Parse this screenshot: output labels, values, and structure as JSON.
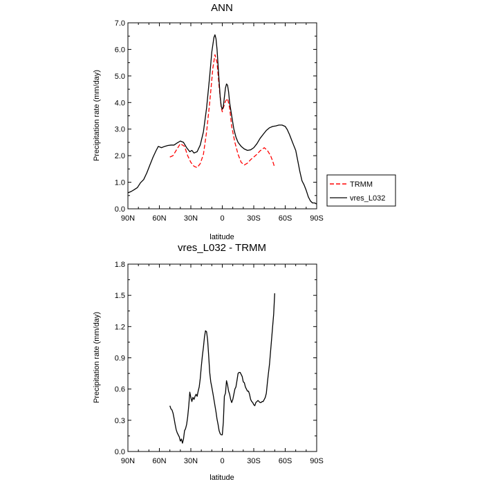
{
  "chart_data": [
    {
      "type": "line",
      "title": "ANN",
      "xlabel": "latitude",
      "ylabel": "Precipitation rate (mm/day)",
      "xlim": [
        -90,
        90
      ],
      "ylim": [
        0,
        7
      ],
      "x_ticks": [
        {
          "value": -90,
          "label": "90N"
        },
        {
          "value": -60,
          "label": "60N"
        },
        {
          "value": -30,
          "label": "30N"
        },
        {
          "value": 0,
          "label": "0"
        },
        {
          "value": 30,
          "label": "30S"
        },
        {
          "value": 60,
          "label": "60S"
        },
        {
          "value": 90,
          "label": "90S"
        }
      ],
      "y_ticks": [
        {
          "value": 0,
          "label": "0.0"
        },
        {
          "value": 1,
          "label": "1.0"
        },
        {
          "value": 2,
          "label": "2.0"
        },
        {
          "value": 3,
          "label": "3.0"
        },
        {
          "value": 4,
          "label": "4.0"
        },
        {
          "value": 5,
          "label": "5.0"
        },
        {
          "value": 6,
          "label": "6.0"
        },
        {
          "value": 7,
          "label": "7.0"
        }
      ],
      "legend": {
        "position": "outside-right",
        "entries": [
          {
            "name": "TRMM",
            "color": "#ff0000",
            "dash": "dashed"
          },
          {
            "name": "vres_L032",
            "color": "#000000",
            "dash": "solid"
          }
        ]
      },
      "series": [
        {
          "name": "TRMM",
          "color": "#ff0000",
          "dash": "dashed",
          "x": [
            -50,
            -47,
            -44,
            -40,
            -36,
            -33,
            -30,
            -27,
            -24,
            -21,
            -18,
            -15,
            -12,
            -9,
            -7,
            -5,
            -3,
            -1,
            0,
            1,
            3,
            5,
            7,
            9,
            12,
            15,
            18,
            21,
            24,
            27,
            30,
            33,
            36,
            40,
            43,
            46,
            48,
            50
          ],
          "y": [
            1.95,
            2.0,
            2.2,
            2.45,
            2.35,
            2.0,
            1.75,
            1.6,
            1.55,
            1.7,
            2.05,
            2.9,
            4.0,
            5.3,
            5.8,
            5.5,
            4.6,
            3.8,
            3.65,
            3.8,
            4.05,
            4.15,
            3.8,
            3.1,
            2.5,
            2.05,
            1.75,
            1.65,
            1.72,
            1.85,
            1.95,
            2.05,
            2.18,
            2.3,
            2.2,
            2.0,
            1.8,
            1.55
          ]
        },
        {
          "name": "vres_L032",
          "color": "#000000",
          "dash": "solid",
          "x": [
            -90,
            -87,
            -84,
            -81,
            -78,
            -75,
            -72,
            -69,
            -66,
            -63,
            -61,
            -58,
            -55,
            -52,
            -49,
            -46,
            -43,
            -40,
            -37,
            -34,
            -31,
            -29,
            -27,
            -24,
            -21,
            -18,
            -15,
            -12,
            -10,
            -8,
            -7,
            -6,
            -5,
            -4,
            -3,
            -2,
            -1,
            0,
            1,
            2,
            3,
            4,
            5,
            6,
            7,
            9,
            11,
            13,
            15,
            18,
            21,
            24,
            27,
            30,
            33,
            36,
            39,
            42,
            45,
            48,
            51,
            54,
            57,
            60,
            62,
            64,
            66,
            68,
            70,
            72,
            74,
            76,
            78,
            80,
            82,
            84,
            86,
            88,
            90
          ],
          "y": [
            0.6,
            0.65,
            0.72,
            0.8,
            0.98,
            1.1,
            1.35,
            1.65,
            1.95,
            2.2,
            2.35,
            2.3,
            2.35,
            2.38,
            2.4,
            2.4,
            2.48,
            2.55,
            2.5,
            2.3,
            2.15,
            2.2,
            2.1,
            2.15,
            2.4,
            2.9,
            3.8,
            5.0,
            5.9,
            6.45,
            6.55,
            6.4,
            6.0,
            5.4,
            4.8,
            4.2,
            3.85,
            3.75,
            3.85,
            4.2,
            4.55,
            4.7,
            4.65,
            4.4,
            4.0,
            3.5,
            3.0,
            2.7,
            2.5,
            2.35,
            2.25,
            2.2,
            2.22,
            2.3,
            2.45,
            2.65,
            2.8,
            2.95,
            3.05,
            3.1,
            3.12,
            3.15,
            3.15,
            3.1,
            2.98,
            2.8,
            2.6,
            2.4,
            2.2,
            1.8,
            1.4,
            1.05,
            0.9,
            0.7,
            0.45,
            0.3,
            0.22,
            0.22,
            0.18
          ]
        }
      ]
    },
    {
      "type": "line",
      "title": "vres_L032 - TRMM",
      "xlabel": "latitude",
      "ylabel": "Precipitation rate (mm/day)",
      "xlim": [
        -90,
        90
      ],
      "ylim": [
        0,
        1.8
      ],
      "x_ticks": [
        {
          "value": -90,
          "label": "90N"
        },
        {
          "value": -60,
          "label": "60N"
        },
        {
          "value": -30,
          "label": "30N"
        },
        {
          "value": 0,
          "label": "0"
        },
        {
          "value": 30,
          "label": "30S"
        },
        {
          "value": 60,
          "label": "60S"
        },
        {
          "value": 90,
          "label": "90S"
        }
      ],
      "y_ticks": [
        {
          "value": 0,
          "label": "0.0"
        },
        {
          "value": 0.3,
          "label": "0.3"
        },
        {
          "value": 0.6,
          "label": "0.6"
        },
        {
          "value": 0.9,
          "label": "0.9"
        },
        {
          "value": 1.2,
          "label": "1.2"
        },
        {
          "value": 1.5,
          "label": "1.5"
        },
        {
          "value": 1.8,
          "label": "1.8"
        }
      ],
      "series": [
        {
          "name": "vres_L032 - TRMM",
          "color": "#000000",
          "dash": "solid",
          "x": [
            -50,
            -49,
            -48,
            -47,
            -46,
            -45,
            -44,
            -43,
            -42,
            -41,
            -40,
            -39,
            -38,
            -37,
            -36,
            -35,
            -34,
            -33,
            -32,
            -31,
            -30,
            -29,
            -28,
            -27,
            -26,
            -25,
            -24,
            -23,
            -22,
            -21,
            -20,
            -19,
            -18,
            -17,
            -16,
            -15,
            -14,
            -13,
            -12,
            -11,
            -10,
            -9,
            -8,
            -7,
            -6,
            -5,
            -4,
            -3,
            -2,
            -1,
            0,
            1,
            2,
            3,
            4,
            5,
            6,
            7,
            8,
            9,
            10,
            11,
            12,
            13,
            14,
            15,
            16,
            17,
            18,
            19,
            20,
            21,
            22,
            23,
            24,
            25,
            26,
            27,
            28,
            29,
            30,
            31,
            32,
            33,
            34,
            35,
            36,
            37,
            38,
            39,
            40,
            41,
            42,
            43,
            44,
            45,
            46,
            47,
            48,
            49,
            50
          ],
          "y": [
            0.44,
            0.41,
            0.4,
            0.37,
            0.32,
            0.26,
            0.21,
            0.18,
            0.16,
            0.14,
            0.1,
            0.12,
            0.08,
            0.12,
            0.2,
            0.22,
            0.26,
            0.33,
            0.44,
            0.57,
            0.52,
            0.48,
            0.52,
            0.5,
            0.53,
            0.55,
            0.53,
            0.58,
            0.62,
            0.7,
            0.82,
            0.92,
            1.0,
            1.1,
            1.16,
            1.15,
            1.07,
            0.92,
            0.76,
            0.67,
            0.62,
            0.56,
            0.5,
            0.44,
            0.38,
            0.31,
            0.26,
            0.2,
            0.17,
            0.16,
            0.16,
            0.28,
            0.53,
            0.56,
            0.68,
            0.64,
            0.58,
            0.55,
            0.5,
            0.47,
            0.5,
            0.55,
            0.6,
            0.62,
            0.68,
            0.75,
            0.76,
            0.76,
            0.74,
            0.72,
            0.67,
            0.66,
            0.62,
            0.6,
            0.58,
            0.58,
            0.55,
            0.5,
            0.48,
            0.47,
            0.45,
            0.44,
            0.47,
            0.48,
            0.49,
            0.48,
            0.47,
            0.47,
            0.48,
            0.48,
            0.5,
            0.52,
            0.56,
            0.66,
            0.75,
            0.84,
            0.96,
            1.08,
            1.2,
            1.32,
            1.52
          ]
        }
      ]
    }
  ]
}
